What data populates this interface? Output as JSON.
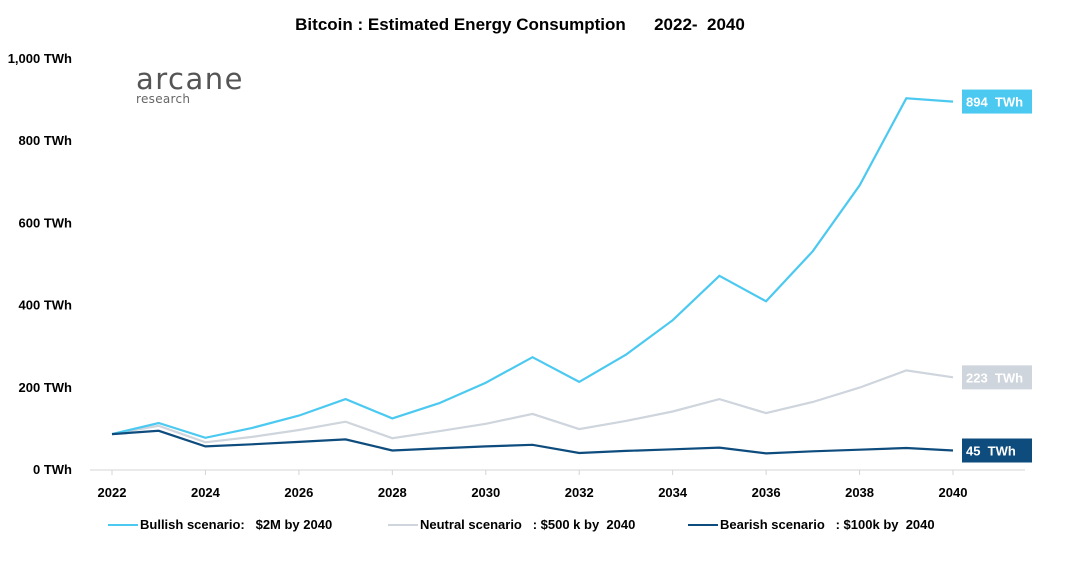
{
  "chart_data": {
    "type": "line",
    "title": "Bitcoin : Estimated Energy Consumption      2022-  2040",
    "xlabel": "",
    "ylabel": "",
    "x": [
      2022,
      2023,
      2024,
      2025,
      2026,
      2027,
      2028,
      2029,
      2030,
      2031,
      2032,
      2033,
      2034,
      2035,
      2036,
      2037,
      2038,
      2039,
      2040
    ],
    "x_ticks": [
      "2022",
      "2024",
      "2026",
      "2028",
      "2030",
      "2032",
      "2034",
      "2036",
      "2038",
      "2040"
    ],
    "y_ticks": [
      "0 TWh",
      "200 TWh",
      "400 TWh",
      "600 TWh",
      "800 TWh",
      "1,000 TWh"
    ],
    "y_tick_values": [
      0,
      200,
      400,
      600,
      800,
      1000
    ],
    "ylim": [
      0,
      1000
    ],
    "grid": false,
    "legend_position": "bottom",
    "series": [
      {
        "name": "Bullish scenario:   $2M by 2040",
        "color": "#4CC9F0",
        "values": [
          85,
          112,
          76,
          100,
          130,
          170,
          123,
          160,
          210,
          272,
          212,
          278,
          362,
          470,
          408,
          530,
          690,
          902,
          894
        ],
        "end_label": "894  TWh"
      },
      {
        "name": "Neutral scenario   : $500 k by  2040",
        "color": "#CFD5DD",
        "values": [
          85,
          105,
          65,
          78,
          95,
          115,
          75,
          92,
          110,
          134,
          97,
          117,
          140,
          170,
          136,
          163,
          198,
          240,
          223
        ],
        "end_label": "223  TWh"
      },
      {
        "name": "Bearish scenario   : $100k by  2040",
        "color": "#0E4C7E",
        "values": [
          85,
          93,
          55,
          60,
          66,
          72,
          45,
          50,
          55,
          59,
          39,
          44,
          48,
          52,
          38,
          43,
          47,
          51,
          45
        ],
        "end_label": "45  TWh"
      }
    ]
  },
  "logo": {
    "name": "arcane",
    "subtitle": "research"
  }
}
